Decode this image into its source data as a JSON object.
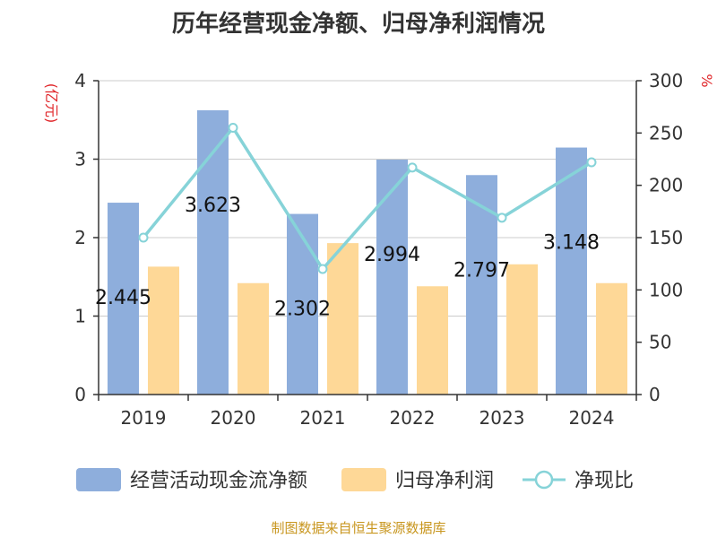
{
  "title": "历年经营现金净额、归母净利润情况",
  "source": "制图数据来自恒生聚源数据库",
  "chart_data": {
    "type": "bar",
    "categories": [
      "2019",
      "2020",
      "2021",
      "2022",
      "2023",
      "2024"
    ],
    "left_axis": {
      "unit": "(亿元)",
      "ylim": [
        0,
        4
      ],
      "ticks": [
        0,
        1,
        2,
        3,
        4
      ]
    },
    "right_axis": {
      "unit": "%",
      "ylim": [
        0,
        300
      ],
      "ticks": [
        0,
        50,
        100,
        150,
        200,
        250,
        300
      ]
    },
    "series": [
      {
        "name": "经营活动现金流净额",
        "type": "bar",
        "axis": "left",
        "color": "#8eaedc",
        "values": [
          2.445,
          3.623,
          2.302,
          2.994,
          2.797,
          3.148
        ],
        "labels": [
          "2.445",
          "3.623",
          "2.302",
          "2.994",
          "2.797",
          "3.148"
        ]
      },
      {
        "name": "归母净利润",
        "type": "bar",
        "axis": "left",
        "color": "#fed897",
        "values": [
          1.63,
          1.42,
          1.93,
          1.38,
          1.66,
          1.42
        ]
      },
      {
        "name": "净现比",
        "type": "line",
        "axis": "right",
        "color": "#86d3d8",
        "values": [
          150,
          255,
          120,
          217,
          169,
          222
        ]
      }
    ],
    "grid": true,
    "legend": "bottom"
  }
}
